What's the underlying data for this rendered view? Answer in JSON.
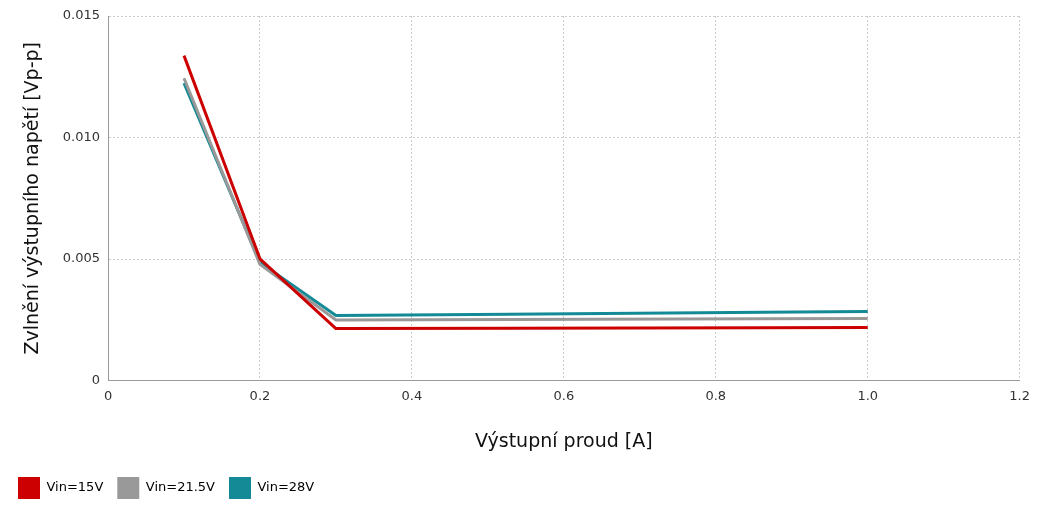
{
  "chart_data": {
    "type": "line",
    "xlabel": "Výstupní proud [A]",
    "ylabel": "Zvlnění výstupního napětí [Vp-p]",
    "x": [
      0.1,
      0.2,
      0.3,
      1.0
    ],
    "series": [
      {
        "name": "Vin=15V",
        "color": "#cc0000",
        "values": [
          0.01337,
          0.00501,
          0.00214,
          0.00218
        ]
      },
      {
        "name": "Vin=21.5V",
        "color": "#999999",
        "values": [
          0.01244,
          0.00478,
          0.00249,
          0.00256
        ]
      },
      {
        "name": "Vin=28V",
        "color": "#148a96",
        "values": [
          0.01224,
          0.00486,
          0.00268,
          0.00284
        ]
      }
    ],
    "xlim": [
      0,
      1.2
    ],
    "xticks": [
      0,
      0.2,
      0.4,
      0.6,
      0.8,
      {
        "value": 1,
        "label": "1.0"
      },
      1.2
    ],
    "ylim": [
      0,
      0.015
    ],
    "yticks": [
      0,
      0.005,
      {
        "value": 0.01,
        "label": "0.010"
      },
      0.015
    ],
    "grid": true,
    "legend": "bottom left",
    "marker": "none",
    "line_style": "solid"
  }
}
